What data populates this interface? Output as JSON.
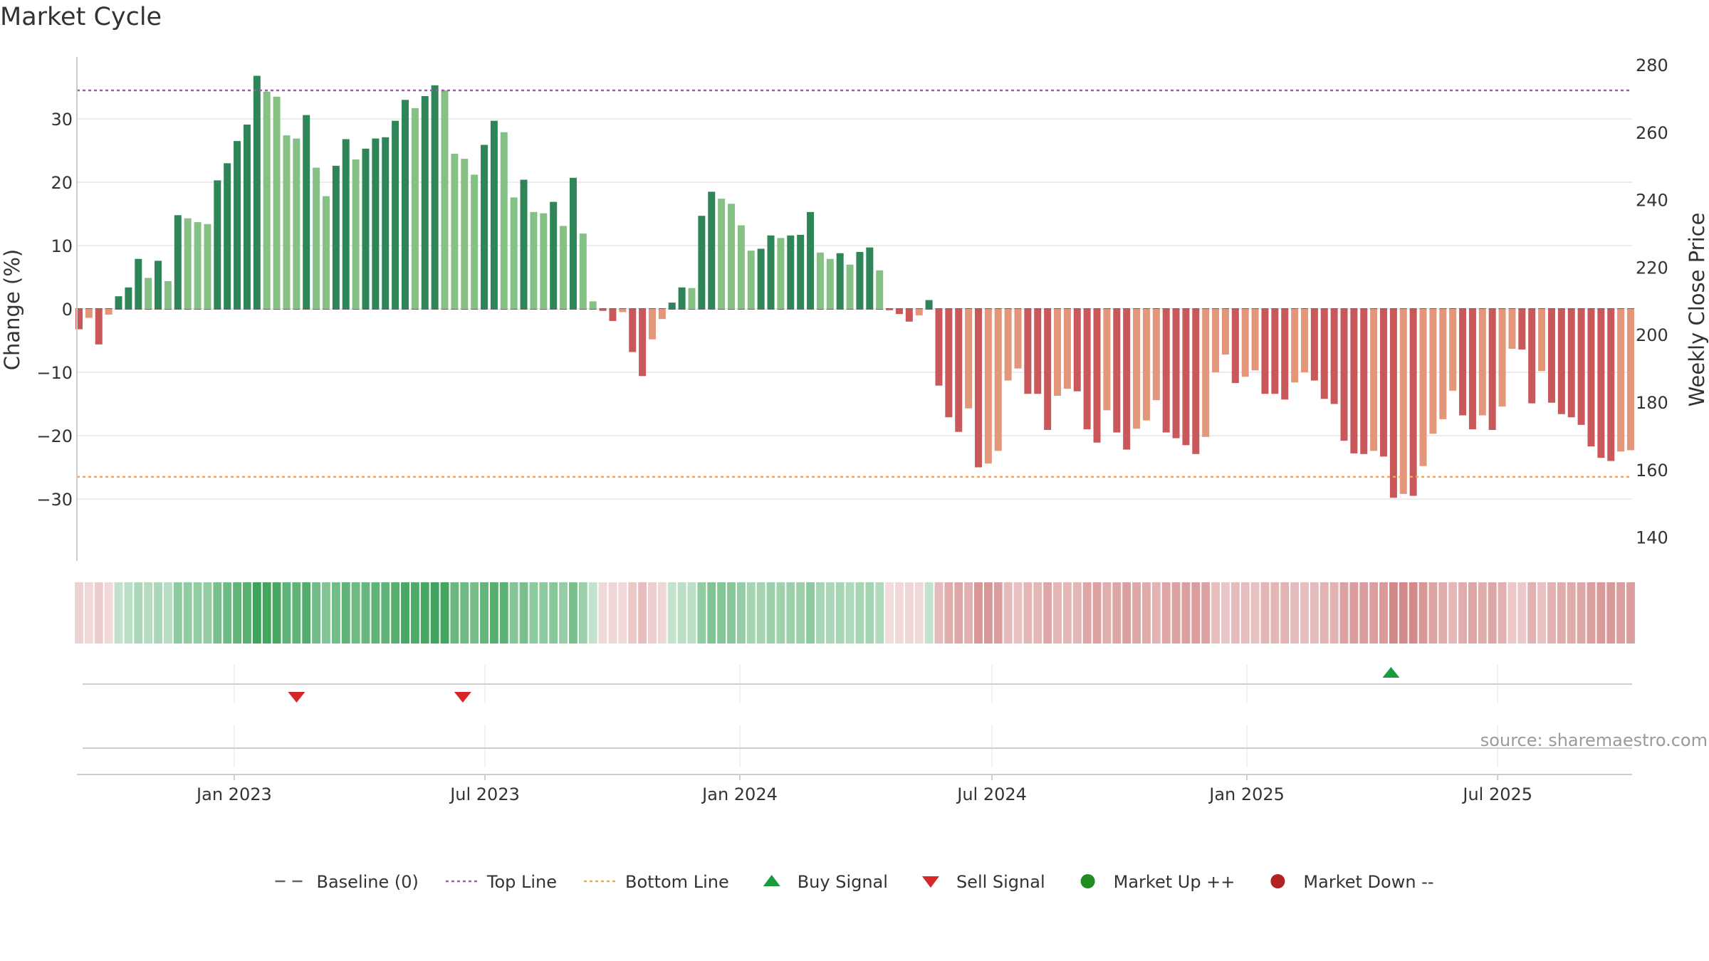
{
  "chart_data": {
    "type": "bar",
    "title": "Market Cycle",
    "ylabel_left": "Change (%)",
    "ylabel_right": "Weekly Close Price",
    "ylim_left": [
      -40,
      38
    ],
    "ylim_right": [
      131,
      279
    ],
    "left_ticks": [
      30,
      20,
      10,
      0,
      -10,
      -20,
      -30
    ],
    "left_tick_labels": [
      "30",
      "20",
      "10",
      "0",
      "−10",
      "−20",
      "−30"
    ],
    "right_ticks": [
      280,
      260,
      240,
      220,
      200,
      180,
      160,
      140
    ],
    "right_tick_labels": [
      "280",
      "260",
      "240",
      "220",
      "200",
      "180",
      "160",
      "140"
    ],
    "x_ticks": [
      "Jan 2023",
      "Jul 2023",
      "Jan 2024",
      "Jul 2024",
      "Jan 2025",
      "Jul 2025"
    ],
    "top_line": 34.5,
    "bottom_line": -26.5,
    "colors": {
      "up_strong": "#2e8558",
      "up_weak": "#85c185",
      "down_strong": "#c9585a",
      "down_weak": "#e3967a",
      "top_line": "#9b59b6",
      "bottom_line": "#f0a565",
      "baseline": "#666666",
      "buy": "#1a9c3e",
      "sell": "#d62728",
      "market_up": "#228B22",
      "market_down": "#B22222"
    },
    "values": [
      -3.2,
      -1.4,
      -5.6,
      -0.9,
      2.0,
      3.4,
      7.9,
      4.9,
      7.6,
      4.4,
      14.8,
      14.3,
      13.7,
      13.4,
      20.3,
      23.0,
      26.5,
      29.1,
      36.8,
      34.3,
      33.5,
      27.4,
      26.9,
      30.6,
      22.3,
      17.8,
      22.6,
      26.8,
      23.6,
      25.3,
      26.9,
      27.1,
      29.7,
      33.0,
      31.7,
      33.6,
      35.3,
      34.5,
      24.5,
      23.7,
      21.2,
      25.9,
      29.7,
      27.9,
      17.6,
      20.4,
      15.3,
      15.1,
      16.9,
      13.1,
      20.7,
      11.9,
      1.2,
      -0.3,
      -1.9,
      -0.5,
      -6.8,
      -10.6,
      -4.8,
      -1.6,
      1.0,
      3.4,
      3.3,
      14.7,
      18.5,
      17.4,
      16.6,
      13.2,
      9.2,
      9.5,
      11.6,
      11.2,
      11.6,
      11.7,
      15.3,
      8.9,
      7.9,
      8.8,
      7.0,
      9.0,
      9.7,
      6.1,
      -0.2,
      -0.8,
      -2.0,
      -1.0,
      1.4,
      -12.1,
      -17.1,
      -19.4,
      -15.7,
      -25.0,
      -24.4,
      -22.4,
      -11.3,
      -9.4,
      -13.4,
      -13.4,
      -19.1,
      -13.7,
      -12.6,
      -13.0,
      -19.0,
      -21.1,
      -16.0,
      -19.5,
      -22.2,
      -18.9,
      -17.6,
      -14.4,
      -19.5,
      -20.4,
      -21.5,
      -22.9,
      -20.2,
      -10.0,
      -7.2,
      -11.7,
      -10.7,
      -9.7,
      -13.4,
      -13.4,
      -14.3,
      -11.6,
      -10.0,
      -11.3,
      -14.2,
      -15.0,
      -20.8,
      -22.8,
      -22.9,
      -22.4,
      -23.3,
      -29.8,
      -29.2,
      -29.5,
      -24.8,
      -19.7,
      -17.4,
      -12.9,
      -16.8,
      -19.0,
      -16.8,
      -19.1,
      -15.4,
      -6.3,
      -6.4,
      -14.9,
      -9.8,
      -14.8,
      -16.6,
      -17.1,
      -18.3,
      -21.7,
      -23.5,
      -24.0,
      -22.5,
      -22.3
    ],
    "weekly_close_price": [],
    "signals": {
      "sell": [
        "2023-02",
        "2023-06"
      ],
      "buy": [
        "2025-04"
      ]
    },
    "source": "source: sharemaestro.com",
    "legend": [
      {
        "label": "Baseline (0)",
        "kind": "dash"
      },
      {
        "label": "Top Line",
        "kind": "dot-purple"
      },
      {
        "label": "Bottom Line",
        "kind": "dot-orange"
      },
      {
        "label": "Buy Signal",
        "kind": "tri-up"
      },
      {
        "label": "Sell Signal",
        "kind": "tri-down"
      },
      {
        "label": "Market Up ++",
        "kind": "circle-green"
      },
      {
        "label": "Market Down --",
        "kind": "circle-red"
      }
    ],
    "legend_position": "bottom",
    "grid": true
  }
}
